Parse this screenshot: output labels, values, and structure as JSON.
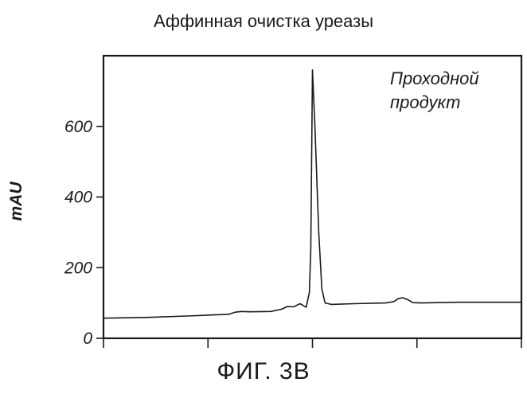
{
  "chart_data": {
    "type": "line",
    "title": "Аффинная очистка уреазы",
    "xlabel": "",
    "ylabel": "mAU",
    "ylim": [
      0,
      800
    ],
    "yticks": [
      0,
      200,
      400,
      600
    ],
    "ytick_labels": [
      "0",
      "200",
      "400",
      "600"
    ],
    "xlim": [
      0,
      20
    ],
    "xticks": [
      0,
      5,
      10,
      15,
      20
    ],
    "xtick_labels": [],
    "grid": false,
    "legend": "none",
    "annotation": {
      "lines": [
        "Проходной",
        "продукт"
      ],
      "placement": "top-right"
    },
    "series": [
      {
        "color": "#1a1a1a",
        "points": [
          [
            0,
            57
          ],
          [
            2,
            59
          ],
          [
            4,
            63
          ],
          [
            6,
            68
          ],
          [
            6.3,
            74
          ],
          [
            6.6,
            76
          ],
          [
            7,
            75
          ],
          [
            8,
            76
          ],
          [
            8.5,
            82
          ],
          [
            8.8,
            90
          ],
          [
            9.1,
            89
          ],
          [
            9.4,
            98
          ],
          [
            9.7,
            88
          ],
          [
            9.85,
            130
          ],
          [
            9.92,
            250
          ],
          [
            10.0,
            760
          ],
          [
            10.12,
            600
          ],
          [
            10.3,
            300
          ],
          [
            10.45,
            140
          ],
          [
            10.6,
            100
          ],
          [
            10.9,
            96
          ],
          [
            12,
            98
          ],
          [
            13.5,
            100
          ],
          [
            13.9,
            104
          ],
          [
            14.1,
            112
          ],
          [
            14.3,
            115
          ],
          [
            14.55,
            110
          ],
          [
            14.8,
            101
          ],
          [
            15.2,
            100
          ],
          [
            17,
            102
          ],
          [
            20,
            102
          ]
        ]
      }
    ]
  },
  "figure_label": "ФИГ. 3В"
}
